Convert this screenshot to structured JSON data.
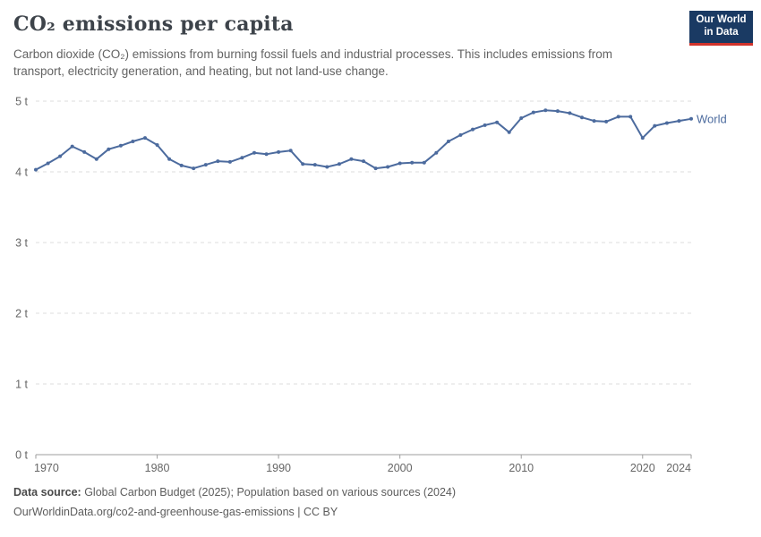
{
  "header": {
    "title": "CO₂ emissions per capita",
    "subtitle": "Carbon dioxide (CO₂) emissions from burning fossil fuels and industrial processes. This includes emissions from transport, electricity generation, and heating, but not land-use change.",
    "logo": {
      "line1": "Our World",
      "line2": "in Data",
      "bg_color": "#1a3a63",
      "accent_color": "#d1332b"
    }
  },
  "chart_data": {
    "type": "line",
    "title": "CO₂ emissions per capita",
    "unit": "t",
    "ylim": [
      0,
      5
    ],
    "yticks": [
      "0 t",
      "1 t",
      "2 t",
      "3 t",
      "4 t",
      "5 t"
    ],
    "xticks": [
      1970,
      1980,
      1990,
      2000,
      2010,
      2020,
      2024
    ],
    "grid": "horizontal-dashed",
    "legend_position": "end-of-line",
    "colors": {
      "grid": "#dcdcdc",
      "axis": "#9e9e9e",
      "axis_text": "#666666"
    },
    "x": [
      1970,
      1971,
      1972,
      1973,
      1974,
      1975,
      1976,
      1977,
      1978,
      1979,
      1980,
      1981,
      1982,
      1983,
      1984,
      1985,
      1986,
      1987,
      1988,
      1989,
      1990,
      1991,
      1992,
      1993,
      1994,
      1995,
      1996,
      1997,
      1998,
      1999,
      2000,
      2001,
      2002,
      2003,
      2004,
      2005,
      2006,
      2007,
      2008,
      2009,
      2010,
      2011,
      2012,
      2013,
      2014,
      2015,
      2016,
      2017,
      2018,
      2019,
      2020,
      2021,
      2022,
      2023,
      2024
    ],
    "series": [
      {
        "name": "World",
        "color": "#4c6b9e",
        "values": [
          4.03,
          4.12,
          4.22,
          4.36,
          4.28,
          4.18,
          4.32,
          4.37,
          4.43,
          4.48,
          4.38,
          4.18,
          4.09,
          4.05,
          4.1,
          4.15,
          4.14,
          4.2,
          4.27,
          4.25,
          4.28,
          4.3,
          4.11,
          4.1,
          4.07,
          4.11,
          4.18,
          4.15,
          4.05,
          4.07,
          4.12,
          4.13,
          4.13,
          4.27,
          4.43,
          4.52,
          4.6,
          4.66,
          4.7,
          4.56,
          4.76,
          4.84,
          4.87,
          4.86,
          4.83,
          4.77,
          4.72,
          4.71,
          4.78,
          4.78,
          4.48,
          4.65,
          4.69,
          4.72,
          4.75
        ]
      }
    ]
  },
  "footer": {
    "source_label": "Data source:",
    "source_text": " Global Carbon Budget (2025); Population based on various sources (2024)",
    "link_line": "OurWorldinData.org/co2-and-greenhouse-gas-emissions | CC BY"
  }
}
